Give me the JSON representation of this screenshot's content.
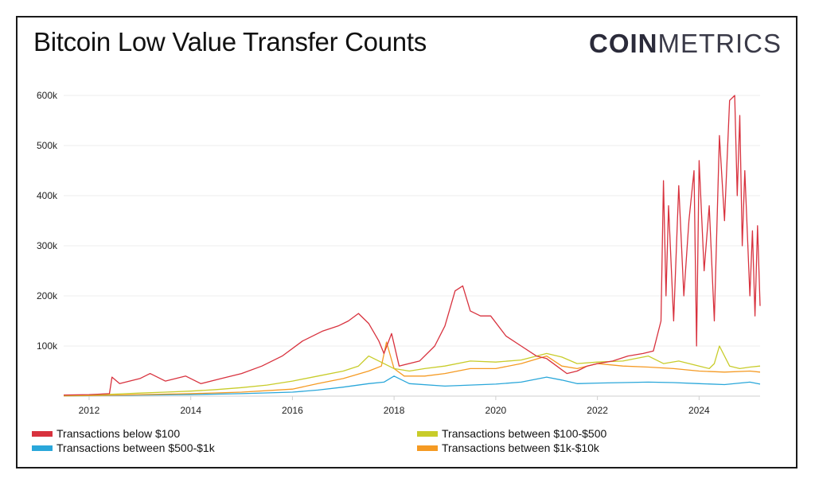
{
  "header": {
    "title": "Bitcoin Low Value Transfer Counts",
    "logo_bold": "COIN",
    "logo_light": "METRICS"
  },
  "chart_data": {
    "type": "line",
    "title": "Bitcoin Low Value Transfer Counts",
    "xlabel": "",
    "ylabel": "",
    "xlim": [
      2011.5,
      2025.2
    ],
    "ylim": [
      0,
      600000
    ],
    "x_ticks": [
      "2012",
      "2014",
      "2016",
      "2018",
      "2020",
      "2022",
      "2024"
    ],
    "y_ticks": [
      "100k",
      "200k",
      "300k",
      "400k",
      "500k",
      "600k"
    ],
    "grid": true,
    "legend_position": "bottom",
    "series": [
      {
        "name": "Transactions below $100",
        "color": "#d8323e",
        "x": [
          2011.5,
          2012.0,
          2012.4,
          2012.45,
          2012.6,
          2013.0,
          2013.2,
          2013.5,
          2013.9,
          2014.2,
          2014.6,
          2015.0,
          2015.4,
          2015.8,
          2016.2,
          2016.6,
          2016.9,
          2017.1,
          2017.3,
          2017.5,
          2017.7,
          2017.8,
          2017.95,
          2018.1,
          2018.5,
          2018.8,
          2019.0,
          2019.2,
          2019.35,
          2019.5,
          2019.7,
          2019.9,
          2020.2,
          2020.5,
          2020.8,
          2021.0,
          2021.2,
          2021.4,
          2021.6,
          2021.8,
          2022.0,
          2022.3,
          2022.6,
          2022.9,
          2023.1,
          2023.25,
          2023.3,
          2023.35,
          2023.4,
          2023.5,
          2023.6,
          2023.7,
          2023.8,
          2023.9,
          2023.95,
          2024.0,
          2024.1,
          2024.2,
          2024.3,
          2024.4,
          2024.5,
          2024.6,
          2024.7,
          2024.75,
          2024.8,
          2024.85,
          2024.9,
          2025.0,
          2025.05,
          2025.1,
          2025.15,
          2025.2
        ],
        "values": [
          2000,
          3000,
          5000,
          38000,
          25000,
          35000,
          45000,
          30000,
          40000,
          25000,
          35000,
          45000,
          60000,
          80000,
          110000,
          130000,
          140000,
          150000,
          165000,
          145000,
          110000,
          85000,
          125000,
          60000,
          70000,
          100000,
          140000,
          210000,
          220000,
          170000,
          160000,
          160000,
          120000,
          100000,
          80000,
          75000,
          60000,
          45000,
          50000,
          60000,
          65000,
          70000,
          80000,
          85000,
          90000,
          150000,
          430000,
          200000,
          380000,
          150000,
          420000,
          200000,
          350000,
          450000,
          100000,
          470000,
          250000,
          380000,
          150000,
          520000,
          350000,
          590000,
          600000,
          400000,
          560000,
          300000,
          450000,
          200000,
          330000,
          160000,
          340000,
          180000
        ]
      },
      {
        "name": "Transactions between $100-$500",
        "color": "#c8cc2a",
        "x": [
          2011.5,
          2012.0,
          2012.5,
          2013.0,
          2013.5,
          2014.0,
          2014.5,
          2015.0,
          2015.5,
          2016.0,
          2016.5,
          2017.0,
          2017.3,
          2017.5,
          2017.8,
          2018.0,
          2018.3,
          2018.6,
          2019.0,
          2019.5,
          2020.0,
          2020.5,
          2021.0,
          2021.3,
          2021.6,
          2022.0,
          2022.5,
          2023.0,
          2023.3,
          2023.6,
          2024.0,
          2024.2,
          2024.3,
          2024.4,
          2024.6,
          2024.8,
          2025.0,
          2025.2
        ],
        "values": [
          1000,
          2000,
          4000,
          6000,
          8000,
          10000,
          13000,
          17000,
          22000,
          30000,
          40000,
          50000,
          60000,
          80000,
          65000,
          55000,
          50000,
          55000,
          60000,
          70000,
          68000,
          72000,
          85000,
          78000,
          65000,
          68000,
          70000,
          80000,
          65000,
          70000,
          60000,
          55000,
          65000,
          100000,
          60000,
          55000,
          58000,
          60000
        ]
      },
      {
        "name": "Transactions between $500-$1k",
        "color": "#2aa7da",
        "x": [
          2011.5,
          2012.0,
          2013.0,
          2014.0,
          2015.0,
          2016.0,
          2016.5,
          2017.0,
          2017.5,
          2017.8,
          2018.0,
          2018.3,
          2019.0,
          2019.5,
          2020.0,
          2020.5,
          2021.0,
          2021.3,
          2021.6,
          2022.0,
          2022.5,
          2023.0,
          2023.5,
          2024.0,
          2024.5,
          2025.0,
          2025.2
        ],
        "values": [
          500,
          800,
          2000,
          3000,
          5000,
          8000,
          12000,
          18000,
          25000,
          28000,
          40000,
          25000,
          20000,
          22000,
          24000,
          28000,
          38000,
          32000,
          25000,
          26000,
          27000,
          28000,
          27000,
          25000,
          23000,
          28000,
          24000
        ]
      },
      {
        "name": "Transactions between $1k-$10k",
        "color": "#f59a23",
        "x": [
          2011.5,
          2012.0,
          2013.0,
          2014.0,
          2015.0,
          2016.0,
          2016.5,
          2017.0,
          2017.5,
          2017.75,
          2017.85,
          2018.0,
          2018.2,
          2018.6,
          2019.0,
          2019.5,
          2020.0,
          2020.5,
          2021.0,
          2021.3,
          2021.6,
          2022.0,
          2022.5,
          2023.0,
          2023.5,
          2024.0,
          2024.5,
          2025.0,
          2025.2
        ],
        "values": [
          500,
          1000,
          3000,
          5000,
          8000,
          14000,
          25000,
          35000,
          50000,
          60000,
          108000,
          55000,
          40000,
          40000,
          45000,
          55000,
          55000,
          65000,
          80000,
          60000,
          55000,
          65000,
          60000,
          58000,
          55000,
          50000,
          48000,
          50000,
          48000
        ]
      }
    ]
  }
}
